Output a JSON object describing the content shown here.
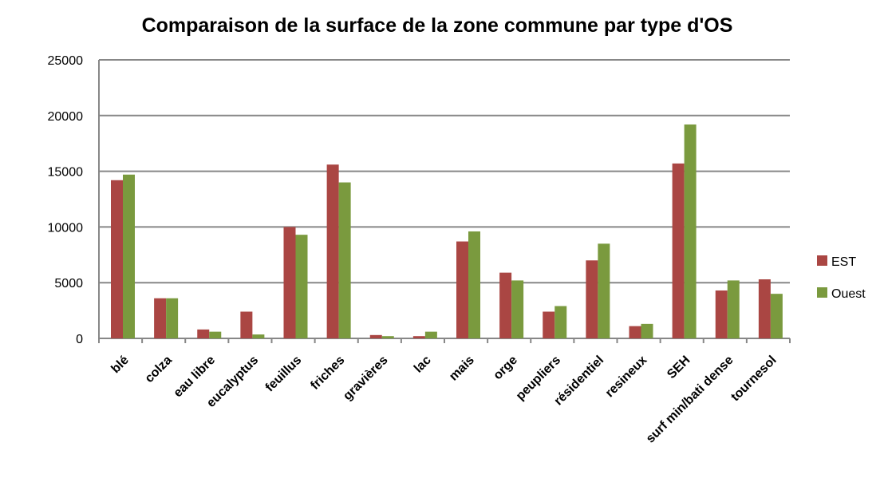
{
  "chart_data": {
    "type": "bar",
    "title": "Comparaison de la surface de la zone commune par type d'OS",
    "xlabel": "",
    "ylabel": "",
    "ylim": [
      0,
      25000
    ],
    "yticks": [
      0,
      5000,
      10000,
      15000,
      20000,
      25000
    ],
    "categories": [
      "blé",
      "colza",
      "eau libre",
      "eucalyptus",
      "feuillus",
      "friches",
      "gravières",
      "lac",
      "mais",
      "orge",
      "peupliers",
      "résidentiel",
      "resineux",
      "SEH",
      "surf min/bati dense",
      "tournesol"
    ],
    "series": [
      {
        "name": "EST",
        "color": "#AA4643",
        "values": [
          14200,
          3600,
          800,
          2400,
          10000,
          15600,
          300,
          200,
          8700,
          5900,
          2400,
          7000,
          1100,
          15700,
          4300,
          5300
        ]
      },
      {
        "name": "Ouest",
        "color": "#7A9A3E",
        "values": [
          14700,
          3600,
          600,
          350,
          9300,
          14000,
          200,
          600,
          9600,
          5200,
          2900,
          8500,
          1300,
          19200,
          5200,
          4000
        ]
      }
    ],
    "grid": true,
    "legend_position": "right"
  }
}
